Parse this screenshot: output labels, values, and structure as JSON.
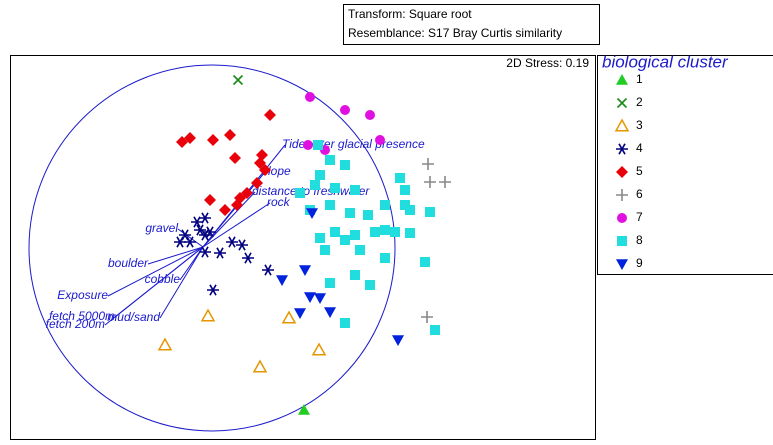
{
  "chart_data": {
    "type": "scatter",
    "transform": "Transform: Square root",
    "resemblance": "Resemblance: S17 Bray Curtis similarity",
    "stress": "2D Stress: 0.19",
    "legend_title": "biological cluster",
    "xlim": [
      0,
      585
    ],
    "ylim": [
      0,
      384
    ],
    "vector_origin": [
      193,
      192
    ],
    "vectors": [
      {
        "label": "Tidewater glacial presence",
        "x": 275,
        "y": 294
      },
      {
        "label": "slope",
        "x": 255,
        "y": 267
      },
      {
        "label": "distance to freshwater",
        "x": 245,
        "y": 247
      },
      {
        "label": "rock",
        "x": 260,
        "y": 236
      },
      {
        "label": "gravel",
        "x": 168,
        "y": 210
      },
      {
        "label": "boulder",
        "x": 138,
        "y": 175
      },
      {
        "label": "cobble",
        "x": 170,
        "y": 159
      },
      {
        "label": "Exposure",
        "x": 98,
        "y": 143
      },
      {
        "label": "fetch 5000m",
        "x": 105,
        "y": 122
      },
      {
        "label": "fetch 200m",
        "x": 95,
        "y": 114
      },
      {
        "label": "mud/sand",
        "x": 150,
        "y": 121
      }
    ],
    "series": [
      {
        "name": "1",
        "color": "#22cc22",
        "marker": "triangle",
        "x": [
          294
        ],
        "values": [
          29
        ]
      },
      {
        "name": "2",
        "color": "#1a8a1a",
        "marker": "cross",
        "x": [
          228
        ],
        "values": [
          359
        ]
      },
      {
        "name": "3",
        "color": "#e69500",
        "marker": "open-triangle",
        "x": [
          198,
          279,
          155,
          309,
          250
        ],
        "values": [
          123,
          121,
          94,
          89,
          72
        ]
      },
      {
        "name": "4",
        "color": "#000080",
        "marker": "asterisk",
        "x": [
          187,
          195,
          175,
          170,
          195,
          200,
          190,
          222,
          232,
          210,
          195,
          238,
          258,
          203,
          180
        ],
        "values": [
          217,
          221,
          204,
          197,
          204,
          207,
          209,
          197,
          194,
          186,
          187,
          181,
          169,
          149,
          197
        ]
      },
      {
        "name": "5",
        "color": "#e8000b",
        "marker": "diamond",
        "x": [
          260,
          220,
          180,
          172,
          203,
          225,
          252,
          255,
          200,
          215,
          227,
          230,
          237,
          247,
          250
        ],
        "values": [
          324,
          304,
          301,
          297,
          299,
          281,
          284,
          269,
          239,
          229,
          234,
          241,
          246,
          256,
          276
        ]
      },
      {
        "name": "6",
        "color": "#888888",
        "marker": "plus",
        "x": [
          418,
          420,
          435,
          417
        ],
        "values": [
          275,
          257,
          257,
          122
        ]
      },
      {
        "name": "7",
        "color": "#e010e0",
        "marker": "circle",
        "x": [
          300,
          335,
          360,
          298,
          315,
          370
        ],
        "values": [
          342,
          329,
          324,
          294,
          289,
          299
        ]
      },
      {
        "name": "8",
        "color": "#22dddd",
        "marker": "square",
        "x": [
          308,
          320,
          335,
          310,
          305,
          325,
          345,
          390,
          395,
          320,
          340,
          358,
          375,
          400,
          420,
          300,
          325,
          345,
          365,
          385,
          400,
          310,
          335,
          375,
          350,
          315,
          415,
          375,
          345,
          360,
          320,
          335,
          425,
          395,
          290
        ],
        "values": [
          294,
          279,
          274,
          264,
          254,
          251,
          249,
          261,
          249,
          234,
          226,
          224,
          234,
          229,
          227,
          229,
          207,
          204,
          207,
          207,
          206,
          201,
          199,
          209,
          189,
          189,
          177,
          181,
          164,
          154,
          156,
          116,
          109,
          234,
          246
        ]
      },
      {
        "name": "9",
        "color": "#0022dd",
        "marker": "triangle-down",
        "x": [
          302,
          272,
          295,
          300,
          310,
          290,
          320,
          388
        ],
        "values": [
          226,
          159,
          169,
          142,
          141,
          126,
          127,
          99
        ]
      }
    ]
  }
}
